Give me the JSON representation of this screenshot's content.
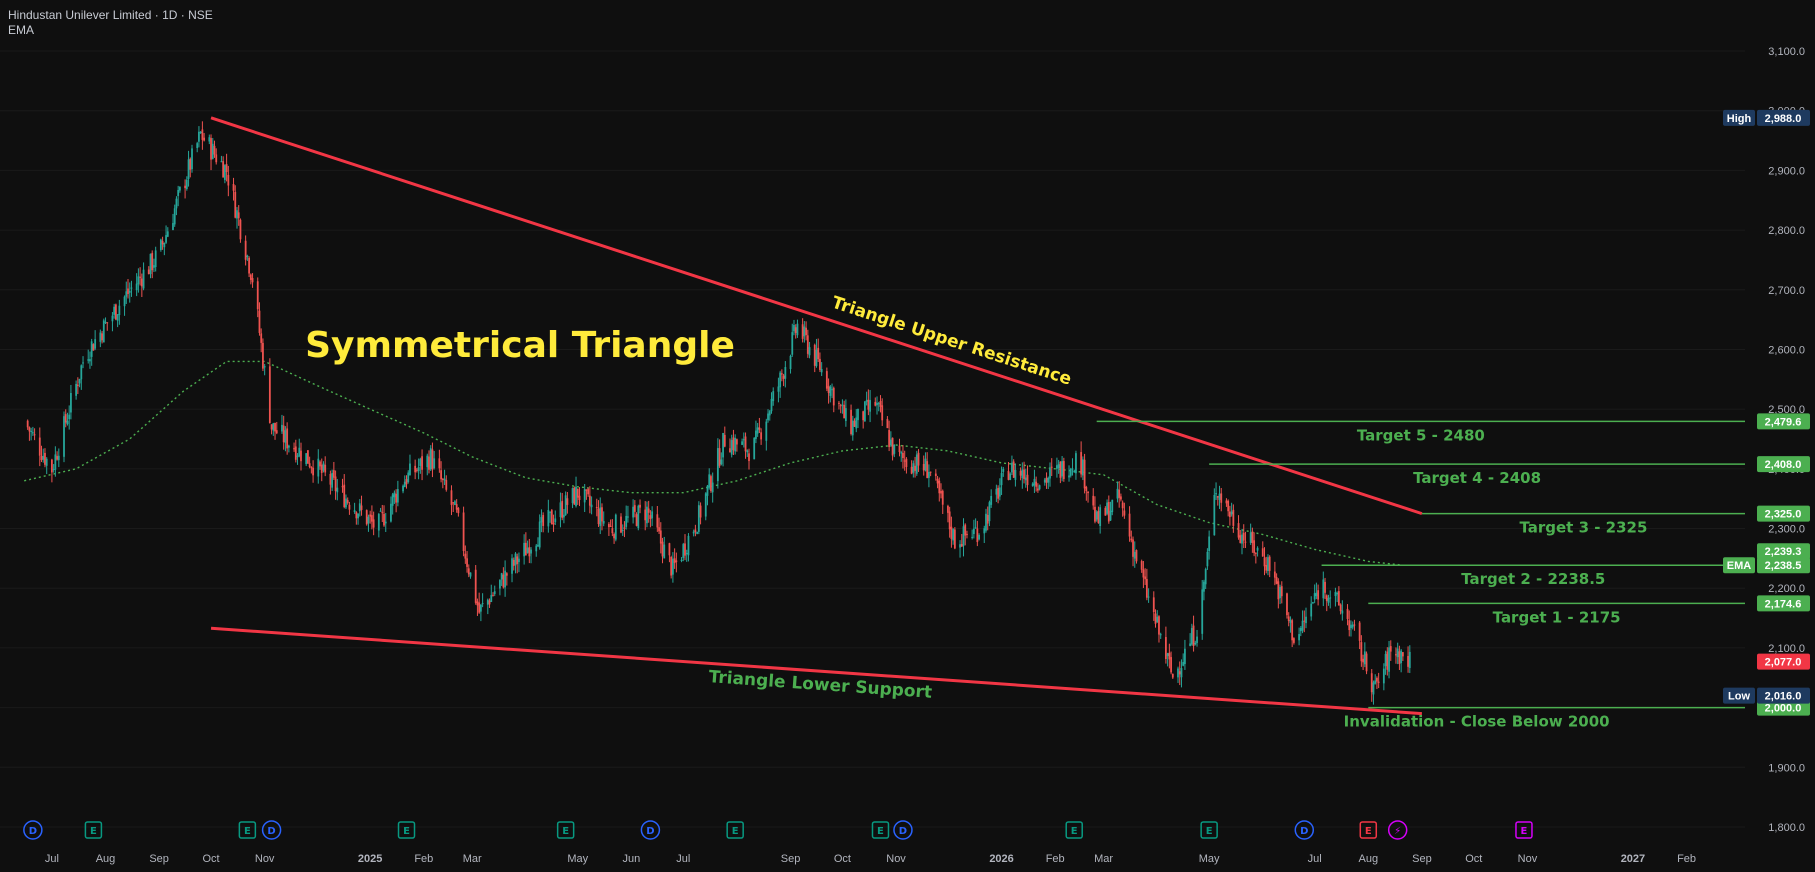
{
  "header": {
    "symbol_line": "Hindustan Unilever Limited · 1D · NSE",
    "indicator": "EMA"
  },
  "colors": {
    "background": "#0f0f0f",
    "up": "#26a69a",
    "down": "#ef5350",
    "trendline": "#f23645",
    "target": "#4caf50",
    "ema": "#4caf50",
    "annotation_yellow": "#ffeb3b",
    "label_dark": "#1e3a5f"
  },
  "chart_data": {
    "type": "candlestick",
    "title": "Symmetrical Triangle",
    "ylim": [
      1800,
      3100
    ],
    "y_ticks": [
      "3,100.0",
      "3,000.0",
      "2,900.0",
      "2,800.0",
      "2,700.0",
      "2,600.0",
      "2,500.0",
      "2,400.0",
      "2,300.0",
      "2,200.0",
      "2,100.0",
      "2,000.0",
      "1,900.0",
      "1,800.0"
    ],
    "x_ticks": [
      "Jul",
      "Aug",
      "Sep",
      "Oct",
      "Nov",
      "2025",
      "Feb",
      "Mar",
      "May",
      "Jun",
      "Jul",
      "Sep",
      "Oct",
      "Nov",
      "2026",
      "Feb",
      "Mar",
      "May",
      "Jul",
      "Aug",
      "Sep",
      "Oct",
      "Nov",
      "2027",
      "Feb"
    ],
    "x_ticks_visible": [
      "Jul",
      "Aug",
      "Sep",
      "Oct",
      "Nov",
      "2025",
      "Feb",
      "Mar",
      "May",
      "Jun",
      "Jul",
      "Sep",
      "Oct",
      "Nov",
      "2026",
      "Feb",
      "Mar",
      "May",
      "Jul",
      "Aug",
      "Sep",
      "Oct",
      "Nov",
      "2027",
      "Feb"
    ],
    "price_path": [
      {
        "date": "2024-06-15",
        "price": 2480
      },
      {
        "date": "2024-07-01",
        "price": 2400
      },
      {
        "date": "2024-07-20",
        "price": 2590
      },
      {
        "date": "2024-08-10",
        "price": 2680
      },
      {
        "date": "2024-09-01",
        "price": 2760
      },
      {
        "date": "2024-09-25",
        "price": 2960
      },
      {
        "date": "2024-10-10",
        "price": 2900
      },
      {
        "date": "2024-10-25",
        "price": 2720
      },
      {
        "date": "2024-11-05",
        "price": 2470
      },
      {
        "date": "2024-11-25",
        "price": 2420
      },
      {
        "date": "2024-12-15",
        "price": 2360
      },
      {
        "date": "2025-01-05",
        "price": 2300
      },
      {
        "date": "2025-01-20",
        "price": 2380
      },
      {
        "date": "2025-02-05",
        "price": 2420
      },
      {
        "date": "2025-02-20",
        "price": 2320
      },
      {
        "date": "2025-03-05",
        "price": 2160
      },
      {
        "date": "2025-03-20",
        "price": 2220
      },
      {
        "date": "2025-04-10",
        "price": 2300
      },
      {
        "date": "2025-05-01",
        "price": 2360
      },
      {
        "date": "2025-05-20",
        "price": 2300
      },
      {
        "date": "2025-06-10",
        "price": 2330
      },
      {
        "date": "2025-06-25",
        "price": 2230
      },
      {
        "date": "2025-07-10",
        "price": 2320
      },
      {
        "date": "2025-07-25",
        "price": 2450
      },
      {
        "date": "2025-08-10",
        "price": 2430
      },
      {
        "date": "2025-08-25",
        "price": 2540
      },
      {
        "date": "2025-09-05",
        "price": 2640
      },
      {
        "date": "2025-09-20",
        "price": 2560
      },
      {
        "date": "2025-10-05",
        "price": 2470
      },
      {
        "date": "2025-10-20",
        "price": 2510
      },
      {
        "date": "2025-11-01",
        "price": 2420
      },
      {
        "date": "2025-11-20",
        "price": 2400
      },
      {
        "date": "2025-12-05",
        "price": 2280
      },
      {
        "date": "2025-12-20",
        "price": 2300
      },
      {
        "date": "2026-01-05",
        "price": 2400
      },
      {
        "date": "2026-01-25",
        "price": 2380
      },
      {
        "date": "2026-02-15",
        "price": 2420
      },
      {
        "date": "2026-02-25",
        "price": 2310
      },
      {
        "date": "2026-03-10",
        "price": 2350
      },
      {
        "date": "2026-03-25",
        "price": 2200
      },
      {
        "date": "2026-04-10",
        "price": 2050
      },
      {
        "date": "2026-04-25",
        "price": 2140
      },
      {
        "date": "2026-05-05",
        "price": 2370
      },
      {
        "date": "2026-05-20",
        "price": 2290
      },
      {
        "date": "2026-06-05",
        "price": 2240
      },
      {
        "date": "2026-06-20",
        "price": 2110
      },
      {
        "date": "2026-07-05",
        "price": 2210
      },
      {
        "date": "2026-07-20",
        "price": 2150
      },
      {
        "date": "2026-08-05",
        "price": 2030
      },
      {
        "date": "2026-08-15",
        "price": 2100
      },
      {
        "date": "2026-08-25",
        "price": 2077
      }
    ],
    "ema_path": [
      {
        "date": "2024-06-15",
        "price": 2380
      },
      {
        "date": "2024-07-15",
        "price": 2400
      },
      {
        "date": "2024-08-15",
        "price": 2450
      },
      {
        "date": "2024-09-15",
        "price": 2530
      },
      {
        "date": "2024-10-10",
        "price": 2580
      },
      {
        "date": "2024-11-01",
        "price": 2580
      },
      {
        "date": "2024-12-01",
        "price": 2540
      },
      {
        "date": "2025-01-01",
        "price": 2500
      },
      {
        "date": "2025-02-01",
        "price": 2460
      },
      {
        "date": "2025-03-01",
        "price": 2420
      },
      {
        "date": "2025-04-01",
        "price": 2385
      },
      {
        "date": "2025-05-01",
        "price": 2370
      },
      {
        "date": "2025-06-01",
        "price": 2360
      },
      {
        "date": "2025-07-01",
        "price": 2360
      },
      {
        "date": "2025-08-01",
        "price": 2380
      },
      {
        "date": "2025-09-01",
        "price": 2410
      },
      {
        "date": "2025-10-01",
        "price": 2430
      },
      {
        "date": "2025-11-01",
        "price": 2440
      },
      {
        "date": "2025-12-01",
        "price": 2430
      },
      {
        "date": "2026-01-01",
        "price": 2410
      },
      {
        "date": "2026-02-01",
        "price": 2400
      },
      {
        "date": "2026-03-01",
        "price": 2390
      },
      {
        "date": "2026-04-01",
        "price": 2340
      },
      {
        "date": "2026-05-01",
        "price": 2310
      },
      {
        "date": "2026-06-01",
        "price": 2290
      },
      {
        "date": "2026-07-01",
        "price": 2265
      },
      {
        "date": "2026-08-01",
        "price": 2245
      },
      {
        "date": "2026-08-20",
        "price": 2239
      }
    ],
    "trendlines": [
      {
        "name": "Triangle Upper Resistance",
        "from": {
          "date": "2024-10-01",
          "price": 2988
        },
        "to": {
          "date": "2026-09-01",
          "price": 2325
        }
      },
      {
        "name": "Triangle Lower Support",
        "from": {
          "date": "2024-10-01",
          "price": 2133
        },
        "to": {
          "date": "2026-09-01",
          "price": 1990
        }
      }
    ],
    "targets": [
      {
        "label": "Target 5 - 2480",
        "price": 2479.6,
        "start": "2026-02-25",
        "tag": "2,479.6"
      },
      {
        "label": "Target 4 - 2408",
        "price": 2408.0,
        "start": "2026-05-01",
        "tag": "2,408.0"
      },
      {
        "label": "Target 3 - 2325",
        "price": 2325.0,
        "start": "2026-09-01",
        "tag": "2,325.0"
      },
      {
        "label": "Target 2 - 2238.5",
        "price": 2238.5,
        "start": "2026-07-05",
        "tag": "2,238.5"
      },
      {
        "label": "Target 1 - 2175",
        "price": 2174.6,
        "start": "2026-08-01",
        "tag": "2,174.6"
      },
      {
        "label": "Invalidation - Close Below 2000",
        "price": 2000.0,
        "start": "2026-08-01",
        "tag": "2,000.0"
      }
    ],
    "annotations": [
      "Triangle Upper Resistance",
      "Triangle Lower Support"
    ],
    "price_tags": {
      "high_label": "High",
      "high": "2,988.0",
      "ema_top": "2,239.3",
      "ema_label": "EMA",
      "last": "2,077.0",
      "low_label": "Low",
      "low": "2,016.0"
    },
    "events": [
      {
        "symbol": "D",
        "date": "2024-06-20",
        "kind": "dividend"
      },
      {
        "symbol": "E",
        "date": "2024-07-25",
        "kind": "earnings"
      },
      {
        "symbol": "E",
        "date": "2024-10-22",
        "kind": "earnings"
      },
      {
        "symbol": "D",
        "date": "2024-11-05",
        "kind": "dividend"
      },
      {
        "symbol": "E",
        "date": "2025-01-22",
        "kind": "earnings"
      },
      {
        "symbol": "E",
        "date": "2025-04-24",
        "kind": "earnings"
      },
      {
        "symbol": "D",
        "date": "2025-06-12",
        "kind": "dividend"
      },
      {
        "symbol": "E",
        "date": "2025-07-31",
        "kind": "earnings"
      },
      {
        "symbol": "E",
        "date": "2025-10-23",
        "kind": "earnings"
      },
      {
        "symbol": "D",
        "date": "2025-11-05",
        "kind": "dividend"
      },
      {
        "symbol": "E",
        "date": "2026-02-12",
        "kind": "earnings"
      },
      {
        "symbol": "E",
        "date": "2026-05-01",
        "kind": "earnings"
      },
      {
        "symbol": "D",
        "date": "2026-06-25",
        "kind": "dividend"
      },
      {
        "symbol": "E",
        "date": "2026-08-01",
        "kind": "earnings-red"
      },
      {
        "symbol": "⚡",
        "date": "2026-08-18",
        "kind": "split"
      },
      {
        "symbol": "E",
        "date": "2026-10-30",
        "kind": "earnings-future"
      }
    ]
  }
}
